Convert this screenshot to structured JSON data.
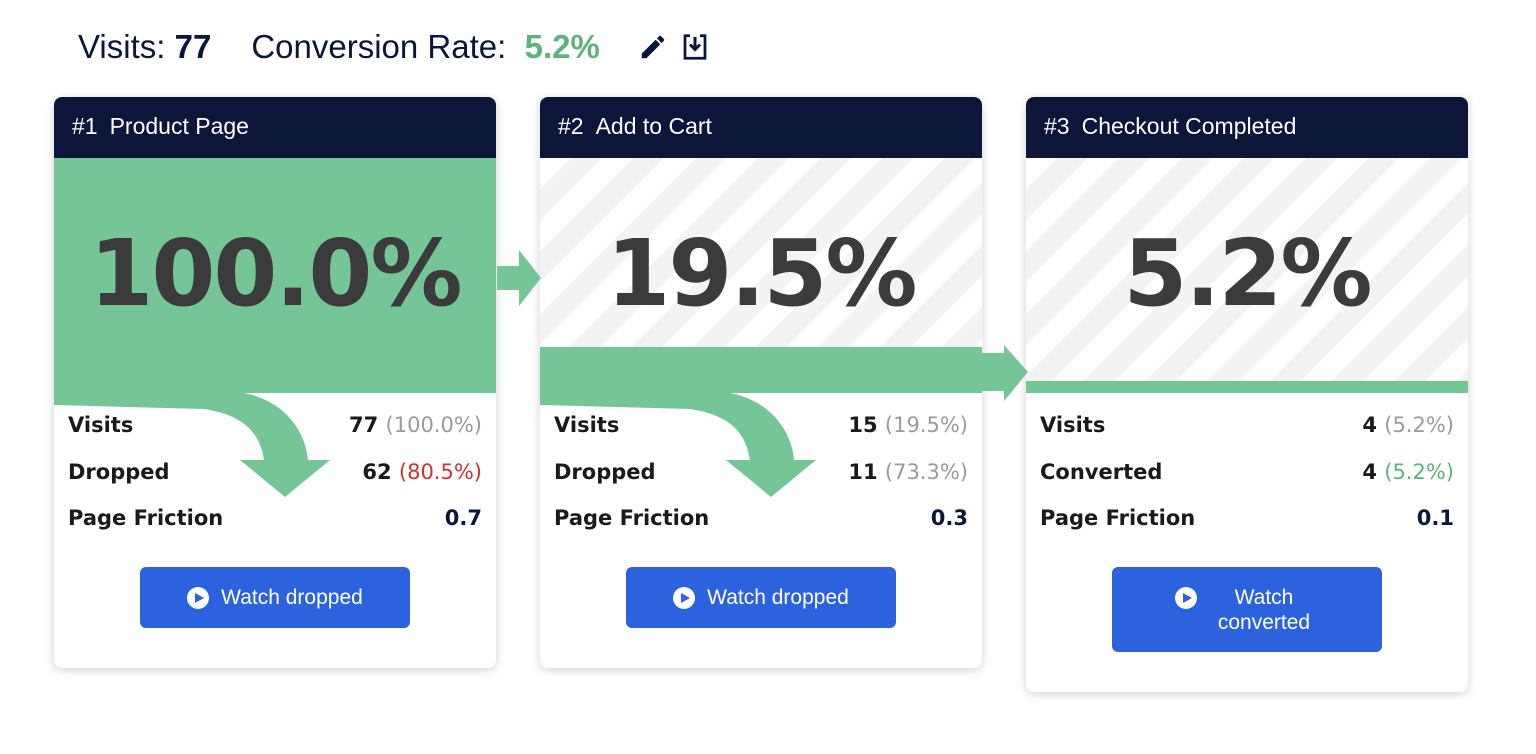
{
  "summary": {
    "visits_label": "Visits:",
    "visits_value": "77",
    "conversion_label": "Conversion Rate:",
    "conversion_value": "5.2%",
    "edit_icon": "pencil-icon",
    "download_icon": "download-icon"
  },
  "colors": {
    "header": "#0c1638",
    "fill": "#76c597",
    "button": "#2d62de",
    "green": "#5db37e",
    "red": "#d8302f",
    "grey": "#9a9aa0"
  },
  "steps": [
    {
      "num": "#1",
      "title": "Product Page",
      "percent": "100.0%",
      "fill_fraction": 1.0,
      "rows": [
        {
          "label": "Visits",
          "value": "77",
          "sub": "(100.0%)",
          "sub_color": "grey"
        },
        {
          "label": "Dropped",
          "value": "62",
          "sub": "(80.5%)",
          "sub_color": "red"
        },
        {
          "label": "Page Friction",
          "value": "0.7",
          "sub": "",
          "sub_color": "grey"
        }
      ],
      "button": "Watch dropped",
      "drop_arrow": true
    },
    {
      "num": "#2",
      "title": "Add to Cart",
      "percent": "19.5%",
      "fill_fraction": 0.195,
      "rows": [
        {
          "label": "Visits",
          "value": "15",
          "sub": "(19.5%)",
          "sub_color": "grey"
        },
        {
          "label": "Dropped",
          "value": "11",
          "sub": "(73.3%)",
          "sub_color": "grey"
        },
        {
          "label": "Page Friction",
          "value": "0.3",
          "sub": "",
          "sub_color": "grey"
        }
      ],
      "button": "Watch dropped",
      "drop_arrow": true
    },
    {
      "num": "#3",
      "title": "Checkout Completed",
      "percent": "5.2%",
      "fill_fraction": 0.052,
      "rows": [
        {
          "label": "Visits",
          "value": "4",
          "sub": "(5.2%)",
          "sub_color": "grey"
        },
        {
          "label": "Converted",
          "value": "4",
          "sub": "(5.2%)",
          "sub_color": "green"
        },
        {
          "label": "Page Friction",
          "value": "0.1",
          "sub": "",
          "sub_color": "grey"
        }
      ],
      "button": "Watch converted",
      "drop_arrow": false
    }
  ]
}
